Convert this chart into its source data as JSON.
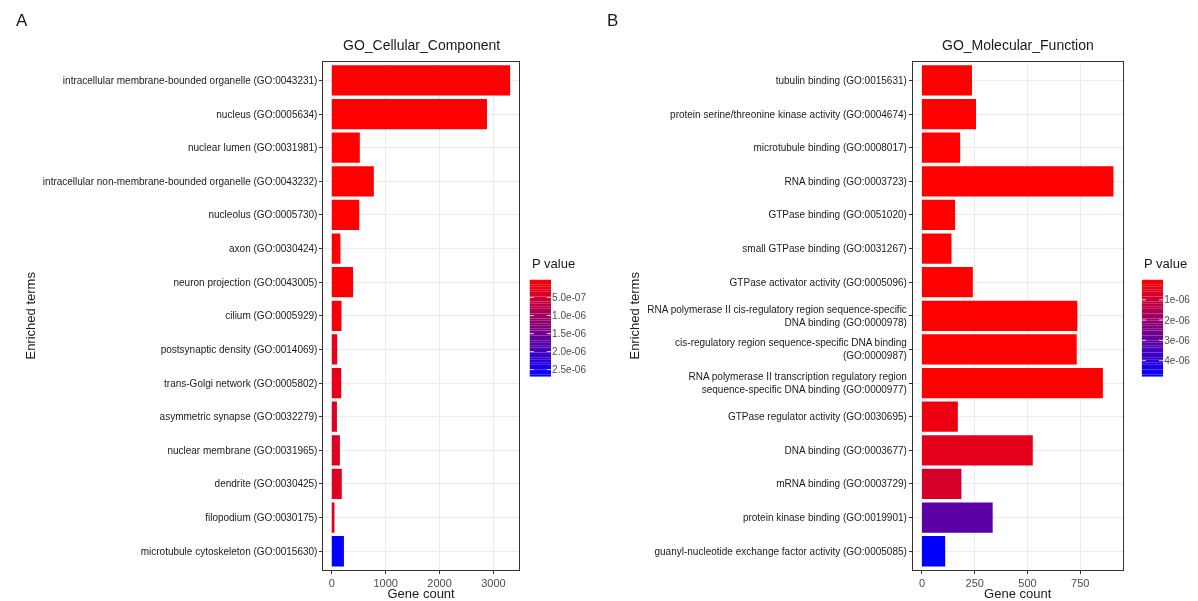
{
  "chart_data": [
    {
      "type": "bar",
      "orientation": "horizontal",
      "title": "GO_Cellular_Component",
      "xlabel": "Gene count",
      "ylabel": "Enriched terms",
      "annotations": [
        "A"
      ],
      "grid": true,
      "clabel": "P value",
      "clim": [
        0,
        2.7e-06
      ],
      "cticks": [
        {
          "value": 5e-07,
          "label": "5.0e-07"
        },
        {
          "value": 1e-06,
          "label": "1.0e-06"
        },
        {
          "value": 1.5e-06,
          "label": "1.5e-06"
        },
        {
          "value": 2e-06,
          "label": "2.0e-06"
        },
        {
          "value": 2.5e-06,
          "label": "2.5e-06"
        }
      ],
      "xlim": [
        -155,
        3470
      ],
      "xticks": [
        0,
        1000,
        2000,
        3000
      ],
      "categories": [
        "intracellular membrane-bounded organelle (GO:0043231)",
        "nucleus (GO:0005634)",
        "nuclear lumen (GO:0031981)",
        "intracellular non-membrane-bounded organelle (GO:0043232)",
        "nucleolus (GO:0005730)",
        "axon (GO:0030424)",
        "neuron projection (GO:0043005)",
        "cilium (GO:0005929)",
        "postsynaptic density (GO:0014069)",
        "trans-Golgi network (GO:0005802)",
        "asymmetric synapse (GO:0032279)",
        "nuclear membrane (GO:0031965)",
        "dendrite (GO:0030425)",
        "filopodium (GO:0030175)",
        "microtubule cytoskeleton (GO:0015630)"
      ],
      "values": [
        3310,
        2880,
        520,
        780,
        510,
        160,
        395,
        180,
        100,
        175,
        95,
        150,
        185,
        50,
        225
      ],
      "cvalues": [
        0,
        0,
        0,
        0,
        0,
        5e-08,
        5e-08,
        1e-07,
        2.5e-07,
        2.5e-07,
        3.5e-07,
        3.5e-07,
        3.5e-07,
        3.5e-07,
        2.7e-06
      ]
    },
    {
      "type": "bar",
      "orientation": "horizontal",
      "title": "GO_Molecular_Function",
      "xlabel": "Gene count",
      "ylabel": "Enriched terms",
      "annotations": [
        "B"
      ],
      "grid": true,
      "clabel": "P value",
      "clim": [
        0,
        4.8e-06
      ],
      "cticks": [
        {
          "value": 1e-06,
          "label": "1e-06"
        },
        {
          "value": 2e-06,
          "label": "2e-06"
        },
        {
          "value": 3e-06,
          "label": "3e-06"
        },
        {
          "value": 4e-06,
          "label": "4e-06"
        }
      ],
      "xlim": [
        -43,
        950
      ],
      "xticks": [
        0,
        250,
        500,
        750
      ],
      "categories": [
        "tubulin binding (GO:0015631)",
        "protein serine/threonine kinase activity (GO:0004674)",
        "microtubule binding (GO:0008017)",
        "RNA binding (GO:0003723)",
        "GTPase binding (GO:0051020)",
        "small GTPase binding (GO:0031267)",
        "GTPase activator activity (GO:0005096)",
        "RNA polymerase II cis-regulatory region sequence-specific DNA binding (GO:0000978)",
        "cis-regulatory region sequence-specific DNA binding (GO:0000987)",
        "RNA polymerase II transcription regulatory region sequence-specific DNA binding (GO:0000977)",
        "GTPase regulator activity (GO:0030695)",
        "DNA binding (GO:0003677)",
        "mRNA binding (GO:0003729)",
        "protein kinase binding (GO:0019901)",
        "guanyl-nucleotide exchange factor activity (GO:0005085)"
      ],
      "values": [
        237,
        256,
        181,
        907,
        157,
        140,
        241,
        736,
        733,
        857,
        170,
        525,
        187,
        335,
        110
      ],
      "cvalues": [
        0,
        0,
        0,
        0,
        0,
        0,
        0,
        0,
        0,
        0,
        3e-07,
        5e-07,
        8e-07,
        3.1e-06,
        4.8e-06
      ]
    }
  ]
}
